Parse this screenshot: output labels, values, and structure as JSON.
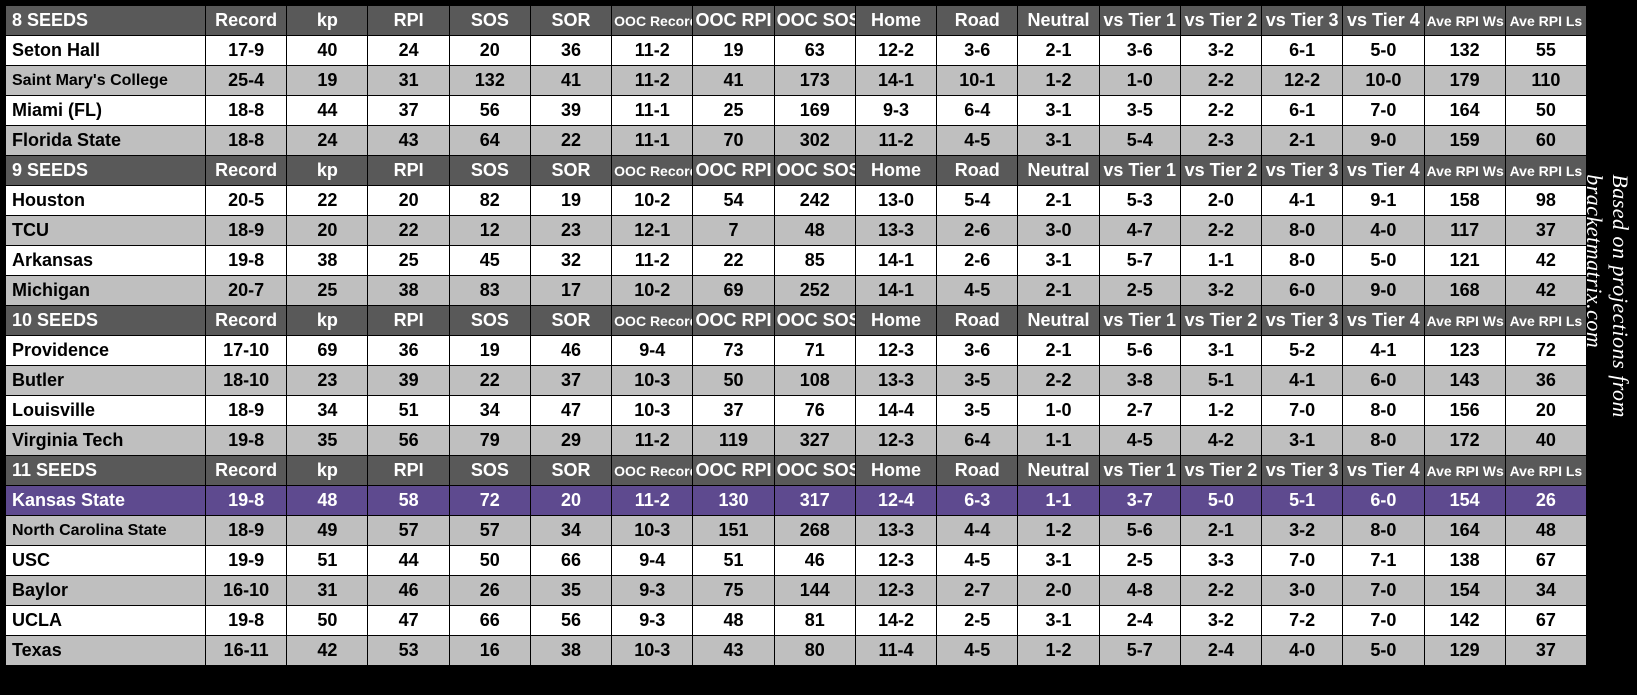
{
  "sideCaption": "Based on projections from bracketmatrix.com",
  "columns": [
    {
      "key": "team",
      "label": "",
      "small": false
    },
    {
      "key": "record",
      "label": "Record",
      "small": false
    },
    {
      "key": "kp",
      "label": "kp",
      "small": false
    },
    {
      "key": "rpi",
      "label": "RPI",
      "small": false
    },
    {
      "key": "sos",
      "label": "SOS",
      "small": false
    },
    {
      "key": "sor",
      "label": "SOR",
      "small": false
    },
    {
      "key": "oocrec",
      "label": "OOC Record",
      "small": true
    },
    {
      "key": "oocrpi",
      "label": "OOC RPI",
      "small": false
    },
    {
      "key": "oocsos",
      "label": "OOC SOS",
      "small": false
    },
    {
      "key": "home",
      "label": "Home",
      "small": false
    },
    {
      "key": "road",
      "label": "Road",
      "small": false
    },
    {
      "key": "neutral",
      "label": "Neutral",
      "small": false
    },
    {
      "key": "t1",
      "label": "vs Tier 1",
      "small": false
    },
    {
      "key": "t2",
      "label": "vs Tier 2",
      "small": false
    },
    {
      "key": "t3",
      "label": "vs Tier 3",
      "small": false
    },
    {
      "key": "t4",
      "label": "vs Tier 4",
      "small": false
    },
    {
      "key": "arw",
      "label": "Ave RPI Ws",
      "small": true
    },
    {
      "key": "arl",
      "label": "Ave RPI Ls",
      "small": true
    }
  ],
  "colors": {
    "headerBg": "#595959",
    "headerFg": "#ffffff",
    "rowWhite": "#ffffff",
    "rowGray": "#bfbfbf",
    "highlightBg": "#5e4a8f",
    "highlightFg": "#ffffff",
    "border": "#000000",
    "pageBg": "#000000"
  },
  "groups": [
    {
      "header": "8 SEEDS",
      "rows": [
        {
          "style": "white",
          "team": "Seton Hall",
          "record": "17-9",
          "kp": "40",
          "rpi": "24",
          "sos": "20",
          "sor": "36",
          "oocrec": "11-2",
          "oocrpi": "19",
          "oocsos": "63",
          "home": "12-2",
          "road": "3-6",
          "neutral": "2-1",
          "t1": "3-6",
          "t2": "3-2",
          "t3": "6-1",
          "t4": "5-0",
          "arw": "132",
          "arl": "55"
        },
        {
          "style": "gray",
          "team": "Saint Mary's College",
          "record": "25-4",
          "kp": "19",
          "rpi": "31",
          "sos": "132",
          "sor": "41",
          "oocrec": "11-2",
          "oocrpi": "41",
          "oocsos": "173",
          "home": "14-1",
          "road": "10-1",
          "neutral": "1-2",
          "t1": "1-0",
          "t2": "2-2",
          "t3": "12-2",
          "t4": "10-0",
          "arw": "179",
          "arl": "110"
        },
        {
          "style": "white",
          "team": "Miami (FL)",
          "record": "18-8",
          "kp": "44",
          "rpi": "37",
          "sos": "56",
          "sor": "39",
          "oocrec": "11-1",
          "oocrpi": "25",
          "oocsos": "169",
          "home": "9-3",
          "road": "6-4",
          "neutral": "3-1",
          "t1": "3-5",
          "t2": "2-2",
          "t3": "6-1",
          "t4": "7-0",
          "arw": "164",
          "arl": "50"
        },
        {
          "style": "gray",
          "team": "Florida State",
          "record": "18-8",
          "kp": "24",
          "rpi": "43",
          "sos": "64",
          "sor": "22",
          "oocrec": "11-1",
          "oocrpi": "70",
          "oocsos": "302",
          "home": "11-2",
          "road": "4-5",
          "neutral": "3-1",
          "t1": "5-4",
          "t2": "2-3",
          "t3": "2-1",
          "t4": "9-0",
          "arw": "159",
          "arl": "60"
        }
      ]
    },
    {
      "header": "9 SEEDS",
      "rows": [
        {
          "style": "white",
          "team": "Houston",
          "record": "20-5",
          "kp": "22",
          "rpi": "20",
          "sos": "82",
          "sor": "19",
          "oocrec": "10-2",
          "oocrpi": "54",
          "oocsos": "242",
          "home": "13-0",
          "road": "5-4",
          "neutral": "2-1",
          "t1": "5-3",
          "t2": "2-0",
          "t3": "4-1",
          "t4": "9-1",
          "arw": "158",
          "arl": "98"
        },
        {
          "style": "gray",
          "team": "TCU",
          "record": "18-9",
          "kp": "20",
          "rpi": "22",
          "sos": "12",
          "sor": "23",
          "oocrec": "12-1",
          "oocrpi": "7",
          "oocsos": "48",
          "home": "13-3",
          "road": "2-6",
          "neutral": "3-0",
          "t1": "4-7",
          "t2": "2-2",
          "t3": "8-0",
          "t4": "4-0",
          "arw": "117",
          "arl": "37"
        },
        {
          "style": "white",
          "team": "Arkansas",
          "record": "19-8",
          "kp": "38",
          "rpi": "25",
          "sos": "45",
          "sor": "32",
          "oocrec": "11-2",
          "oocrpi": "22",
          "oocsos": "85",
          "home": "14-1",
          "road": "2-6",
          "neutral": "3-1",
          "t1": "5-7",
          "t2": "1-1",
          "t3": "8-0",
          "t4": "5-0",
          "arw": "121",
          "arl": "42"
        },
        {
          "style": "gray",
          "team": "Michigan",
          "record": "20-7",
          "kp": "25",
          "rpi": "38",
          "sos": "83",
          "sor": "17",
          "oocrec": "10-2",
          "oocrpi": "69",
          "oocsos": "252",
          "home": "14-1",
          "road": "4-5",
          "neutral": "2-1",
          "t1": "2-5",
          "t2": "3-2",
          "t3": "6-0",
          "t4": "9-0",
          "arw": "168",
          "arl": "42"
        }
      ]
    },
    {
      "header": "10 SEEDS",
      "rows": [
        {
          "style": "white",
          "team": "Providence",
          "record": "17-10",
          "kp": "69",
          "rpi": "36",
          "sos": "19",
          "sor": "46",
          "oocrec": "9-4",
          "oocrpi": "73",
          "oocsos": "71",
          "home": "12-3",
          "road": "3-6",
          "neutral": "2-1",
          "t1": "5-6",
          "t2": "3-1",
          "t3": "5-2",
          "t4": "4-1",
          "arw": "123",
          "arl": "72"
        },
        {
          "style": "gray",
          "team": "Butler",
          "record": "18-10",
          "kp": "23",
          "rpi": "39",
          "sos": "22",
          "sor": "37",
          "oocrec": "10-3",
          "oocrpi": "50",
          "oocsos": "108",
          "home": "13-3",
          "road": "3-5",
          "neutral": "2-2",
          "t1": "3-8",
          "t2": "5-1",
          "t3": "4-1",
          "t4": "6-0",
          "arw": "143",
          "arl": "36"
        },
        {
          "style": "white",
          "team": "Louisville",
          "record": "18-9",
          "kp": "34",
          "rpi": "51",
          "sos": "34",
          "sor": "47",
          "oocrec": "10-3",
          "oocrpi": "37",
          "oocsos": "76",
          "home": "14-4",
          "road": "3-5",
          "neutral": "1-0",
          "t1": "2-7",
          "t2": "1-2",
          "t3": "7-0",
          "t4": "8-0",
          "arw": "156",
          "arl": "20"
        },
        {
          "style": "gray",
          "team": "Virginia Tech",
          "record": "19-8",
          "kp": "35",
          "rpi": "56",
          "sos": "79",
          "sor": "29",
          "oocrec": "11-2",
          "oocrpi": "119",
          "oocsos": "327",
          "home": "12-3",
          "road": "6-4",
          "neutral": "1-1",
          "t1": "4-5",
          "t2": "4-2",
          "t3": "3-1",
          "t4": "8-0",
          "arw": "172",
          "arl": "40"
        }
      ]
    },
    {
      "header": "11 SEEDS",
      "rows": [
        {
          "style": "purple",
          "team": "Kansas State",
          "record": "19-8",
          "kp": "48",
          "rpi": "58",
          "sos": "72",
          "sor": "20",
          "oocrec": "11-2",
          "oocrpi": "130",
          "oocsos": "317",
          "home": "12-4",
          "road": "6-3",
          "neutral": "1-1",
          "t1": "3-7",
          "t2": "5-0",
          "t3": "5-1",
          "t4": "6-0",
          "arw": "154",
          "arl": "26"
        },
        {
          "style": "gray",
          "team": "North Carolina State",
          "record": "18-9",
          "kp": "49",
          "rpi": "57",
          "sos": "57",
          "sor": "34",
          "oocrec": "10-3",
          "oocrpi": "151",
          "oocsos": "268",
          "home": "13-3",
          "road": "4-4",
          "neutral": "1-2",
          "t1": "5-6",
          "t2": "2-1",
          "t3": "3-2",
          "t4": "8-0",
          "arw": "164",
          "arl": "48"
        },
        {
          "style": "white",
          "team": "USC",
          "record": "19-9",
          "kp": "51",
          "rpi": "44",
          "sos": "50",
          "sor": "66",
          "oocrec": "9-4",
          "oocrpi": "51",
          "oocsos": "46",
          "home": "12-3",
          "road": "4-5",
          "neutral": "3-1",
          "t1": "2-5",
          "t2": "3-3",
          "t3": "7-0",
          "t4": "7-1",
          "arw": "138",
          "arl": "67"
        },
        {
          "style": "gray",
          "team": "Baylor",
          "record": "16-10",
          "kp": "31",
          "rpi": "46",
          "sos": "26",
          "sor": "35",
          "oocrec": "9-3",
          "oocrpi": "75",
          "oocsos": "144",
          "home": "12-3",
          "road": "2-7",
          "neutral": "2-0",
          "t1": "4-8",
          "t2": "2-2",
          "t3": "3-0",
          "t4": "7-0",
          "arw": "154",
          "arl": "34"
        },
        {
          "style": "white",
          "team": "UCLA",
          "record": "19-8",
          "kp": "50",
          "rpi": "47",
          "sos": "66",
          "sor": "56",
          "oocrec": "9-3",
          "oocrpi": "48",
          "oocsos": "81",
          "home": "14-2",
          "road": "2-5",
          "neutral": "3-1",
          "t1": "2-4",
          "t2": "3-2",
          "t3": "7-2",
          "t4": "7-0",
          "arw": "142",
          "arl": "67"
        },
        {
          "style": "gray",
          "team": "Texas",
          "record": "16-11",
          "kp": "42",
          "rpi": "53",
          "sos": "16",
          "sor": "38",
          "oocrec": "10-3",
          "oocrpi": "43",
          "oocsos": "80",
          "home": "11-4",
          "road": "4-5",
          "neutral": "1-2",
          "t1": "5-7",
          "t2": "2-4",
          "t3": "4-0",
          "t4": "5-0",
          "arw": "129",
          "arl": "37"
        }
      ]
    }
  ]
}
